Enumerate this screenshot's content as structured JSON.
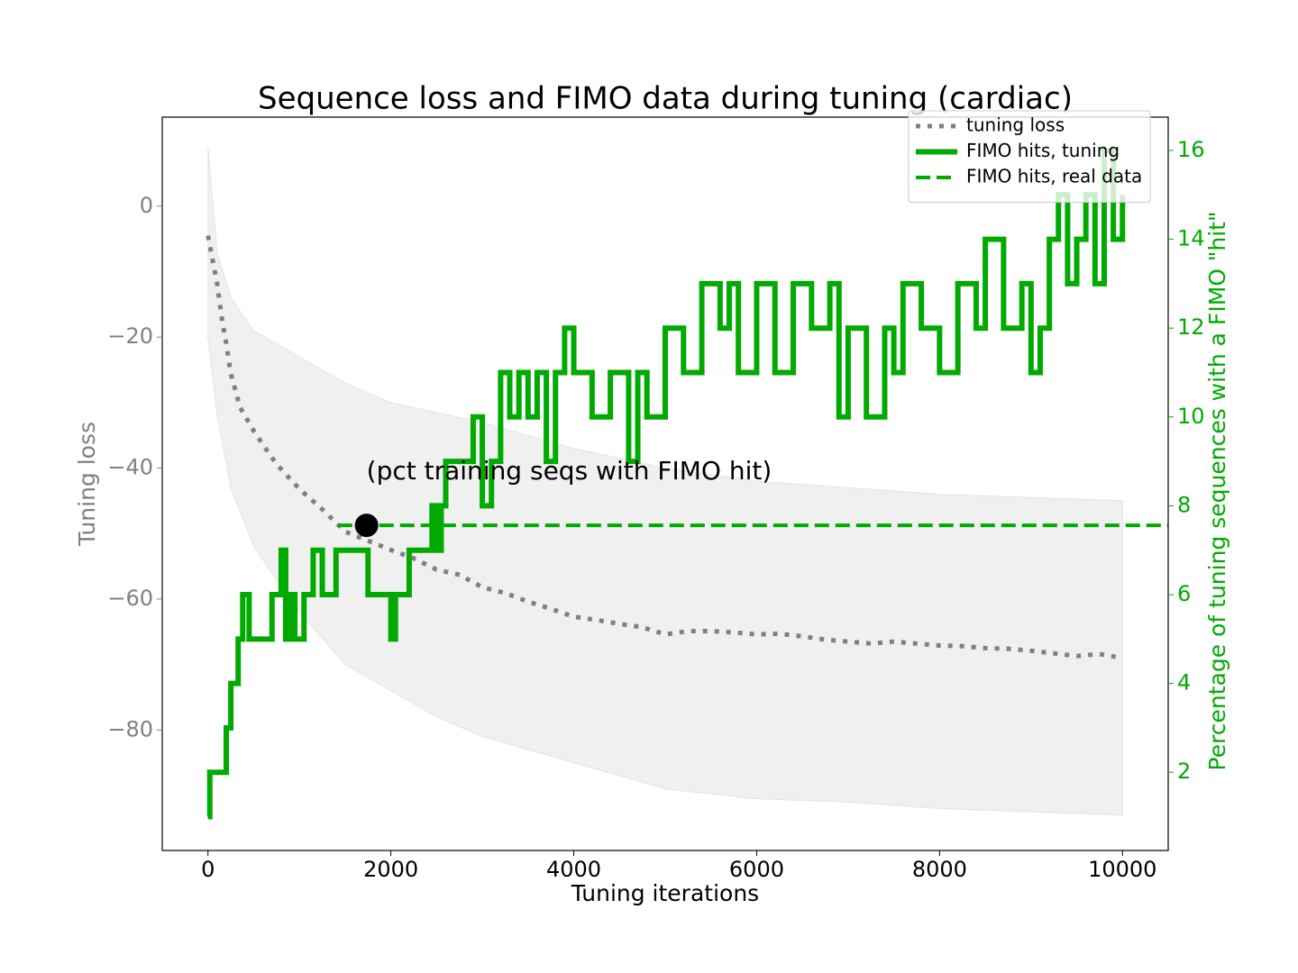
{
  "chart_data": {
    "type": "line",
    "title": "Sequence loss and FIMO data during tuning (cardiac)",
    "xlabel": "Tuning iterations",
    "ylabel": "Tuning loss",
    "y2label": "Percentage of tuning sequences with a FIMO \"hit\"",
    "ylabel_color": "#808080",
    "y2label_color": "#00aa00",
    "xlim": [
      -500,
      10500
    ],
    "ylim": [
      -98.4,
      13.6
    ],
    "y2lim": [
      0.24,
      16.75
    ],
    "xticks": [
      0,
      2000,
      4000,
      6000,
      8000,
      10000
    ],
    "yticks": [
      0,
      {
        "value": -20,
        "label": "−20"
      },
      {
        "value": -40,
        "label": "−40"
      },
      {
        "value": -60,
        "label": "−60"
      },
      {
        "value": -80,
        "label": "−80"
      }
    ],
    "y2ticks": [
      2,
      4,
      6,
      8,
      10,
      12,
      14,
      16
    ],
    "legend": "upper right",
    "band": {
      "color": "#f0f0f0",
      "x": [
        0,
        100,
        250,
        500,
        1000,
        1500,
        2000,
        2500,
        3000,
        4000,
        5000,
        6000,
        7000,
        8000,
        9000,
        10000
      ],
      "upper": [
        8.8,
        -7,
        -14,
        -19,
        -23,
        -27,
        -30,
        -31.5,
        -33,
        -37,
        -40,
        -42,
        -43,
        -44,
        -44.5,
        -45
      ],
      "lower": [
        -20,
        -32,
        -43,
        -52,
        -62,
        -70,
        -74,
        -78,
        -81,
        -85,
        -89,
        -90.5,
        -91,
        -92,
        -92.5,
        -93
      ]
    },
    "series": [
      {
        "name": "tuning loss",
        "color": "#808080",
        "style": "dotted",
        "x": [
          0,
          100,
          150,
          200,
          250,
          350,
          500,
          600,
          750,
          1000,
          1250,
          1500,
          1750,
          2000,
          2250,
          2500,
          2750,
          3000,
          3250,
          3500,
          3750,
          4000,
          4250,
          4500,
          4750,
          5000,
          5250,
          5500,
          5750,
          6000,
          6250,
          6500,
          6750,
          7000,
          7250,
          7500,
          7750,
          8000,
          8250,
          8500,
          8750,
          9000,
          9250,
          9500,
          9750,
          10000
        ],
        "values": [
          -4.5,
          -11.8,
          -17,
          -21,
          -25.6,
          -30.7,
          -34.3,
          -36.4,
          -39.4,
          -43.2,
          -46.3,
          -49.7,
          -51.1,
          -52.5,
          -53.8,
          -55.5,
          -56.3,
          -58.2,
          -59.1,
          -60.4,
          -61.5,
          -62.7,
          -63.2,
          -63.8,
          -64.3,
          -65.4,
          -64.9,
          -64.9,
          -65.1,
          -65.4,
          -65.3,
          -65.7,
          -66.2,
          -66.5,
          -66.8,
          -66.5,
          -66.8,
          -67.1,
          -67.2,
          -67.5,
          -67.6,
          -67.9,
          -68.3,
          -68.7,
          -68.4,
          -69.0
        ]
      },
      {
        "name": "FIMO hits, tuning",
        "color": "#00aa00",
        "style": "step",
        "axis": "y2",
        "x": [
          0,
          20,
          200,
          250,
          330,
          380,
          450,
          600,
          700,
          800,
          850,
          900,
          950,
          1050,
          1150,
          1250,
          1400,
          1500,
          1700,
          1750,
          1900,
          2000,
          2050,
          2200,
          2450,
          2500,
          2550,
          2600,
          2750,
          2900,
          3000,
          3100,
          3200,
          3300,
          3400,
          3500,
          3600,
          3700,
          3800,
          3900,
          4000,
          4200,
          4400,
          4600,
          4700,
          4800,
          5000,
          5200,
          5400,
          5600,
          5700,
          5800,
          6000,
          6200,
          6400,
          6600,
          6800,
          6900,
          7000,
          7200,
          7400,
          7500,
          7600,
          7800,
          8000,
          8200,
          8400,
          8500,
          8700,
          8900,
          9000,
          9100,
          9200,
          9300,
          9400,
          9500,
          9600,
          9700,
          9800,
          9900,
          10000
        ],
        "values": [
          1,
          2,
          3,
          4,
          5,
          6,
          5,
          5,
          6,
          7,
          5,
          6,
          5,
          6,
          7,
          6,
          7,
          7,
          7,
          6,
          6,
          5,
          6,
          7,
          8,
          7,
          8,
          9,
          9,
          10,
          8,
          9,
          11,
          10,
          11,
          10,
          11,
          9,
          11,
          12,
          11,
          10,
          11,
          9,
          11,
          10,
          12,
          11,
          13,
          12,
          13,
          11,
          13,
          11,
          13,
          12,
          13,
          10,
          12,
          10,
          12,
          11,
          13,
          12,
          11,
          13,
          12,
          14,
          12,
          13,
          11,
          12,
          14,
          15,
          13,
          14,
          15,
          13,
          16,
          14,
          15
        ]
      },
      {
        "name": "FIMO hits, real data",
        "color": "#00aa00",
        "style": "dashed",
        "axis": "y2",
        "x": [
          1420,
          10500
        ],
        "values": [
          7.56,
          7.56
        ]
      }
    ],
    "annotation": {
      "text": "(pct training seqs with FIMO hit)",
      "x": 1734,
      "y": 7.56,
      "axis": "y2",
      "color": "#000000"
    }
  }
}
